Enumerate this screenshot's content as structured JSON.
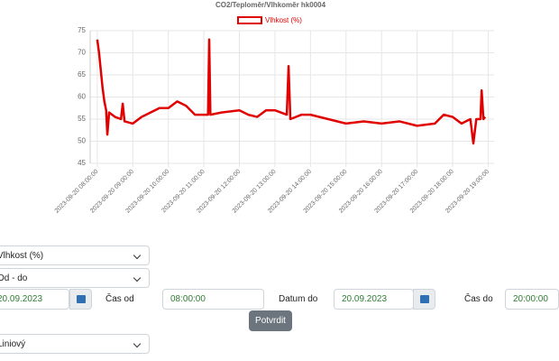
{
  "chart_data": {
    "type": "line",
    "title": "CO2/Teploměr/Vlhkoměr hk0004",
    "series": [
      {
        "name": "Vlhkost (%)",
        "color": "#e00000",
        "x": [
          "2023-09-20 08:00:00",
          "2023-09-20 08:03:00",
          "2023-09-20 08:06:00",
          "2023-09-20 08:09:00",
          "2023-09-20 08:12:00",
          "2023-09-20 08:15:00",
          "2023-09-20 08:17:00",
          "2023-09-20 08:20:00",
          "2023-09-20 08:30:00",
          "2023-09-20 08:40:00",
          "2023-09-20 08:43:00",
          "2023-09-20 08:46:00",
          "2023-09-20 09:00:00",
          "2023-09-20 09:15:00",
          "2023-09-20 09:30:00",
          "2023-09-20 09:45:00",
          "2023-09-20 10:00:00",
          "2023-09-20 10:15:00",
          "2023-09-20 10:30:00",
          "2023-09-20 10:45:00",
          "2023-09-20 11:00:00",
          "2023-09-20 11:07:00",
          "2023-09-20 11:09:00",
          "2023-09-20 11:11:00",
          "2023-09-20 11:30:00",
          "2023-09-20 12:00:00",
          "2023-09-20 12:15:00",
          "2023-09-20 12:30:00",
          "2023-09-20 12:45:00",
          "2023-09-20 13:00:00",
          "2023-09-20 13:20:00",
          "2023-09-20 13:23:00",
          "2023-09-20 13:26:00",
          "2023-09-20 13:45:00",
          "2023-09-20 14:00:00",
          "2023-09-20 14:30:00",
          "2023-09-20 15:00:00",
          "2023-09-20 15:30:00",
          "2023-09-20 16:00:00",
          "2023-09-20 16:30:00",
          "2023-09-20 17:00:00",
          "2023-09-20 17:30:00",
          "2023-09-20 17:45:00",
          "2023-09-20 18:00:00",
          "2023-09-20 18:15:00",
          "2023-09-20 18:30:00",
          "2023-09-20 18:35:00",
          "2023-09-20 18:40:00",
          "2023-09-20 18:47:00",
          "2023-09-20 18:49:00",
          "2023-09-20 18:52:00",
          "2023-09-20 18:55:00"
        ],
        "values": [
          73,
          70,
          66,
          62,
          59,
          57,
          51.5,
          56.5,
          55.5,
          55,
          58.5,
          54.5,
          54,
          55.5,
          56.5,
          57.5,
          57.5,
          59,
          58,
          56,
          56,
          56,
          73,
          56,
          56.5,
          57,
          56,
          55.5,
          57,
          57,
          56,
          67,
          55,
          56,
          56,
          55,
          54,
          54.5,
          54,
          54.5,
          53.5,
          54,
          56,
          55.5,
          54,
          55,
          49.5,
          55,
          55,
          61.5,
          55,
          55.5
        ]
      }
    ],
    "xlim": [
      "2023-09-20 07:48:00",
      "2023-09-20 19:10:00"
    ],
    "xticks": [
      "2023-09-20 08:00:00",
      "2023-09-20 09:00:00",
      "2023-09-20 10:00:00",
      "2023-09-20 11:00:00",
      "2023-09-20 12:00:00",
      "2023-09-20 13:00:00",
      "2023-09-20 14:00:00",
      "2023-09-20 15:00:00",
      "2023-09-20 16:00:00",
      "2023-09-20 17:00:00",
      "2023-09-20 18:00:00",
      "2023-09-20 19:00:00"
    ],
    "ylim": [
      45,
      75
    ],
    "yticks": [
      45,
      50,
      55,
      60,
      65,
      70,
      75
    ],
    "grid": true
  },
  "form": {
    "measure": "Vlhkost (%)",
    "range": "Od - do",
    "date_from": "20.09.2023",
    "time_from_label": "Čas od",
    "time_from": "08:00:00",
    "date_to_label": "Datum do",
    "date_to": "20.09.2023",
    "time_to_label": "Čas do",
    "time_to": "20:00:00",
    "submit": "Potvrdit",
    "chart_kind": "Liniový"
  }
}
